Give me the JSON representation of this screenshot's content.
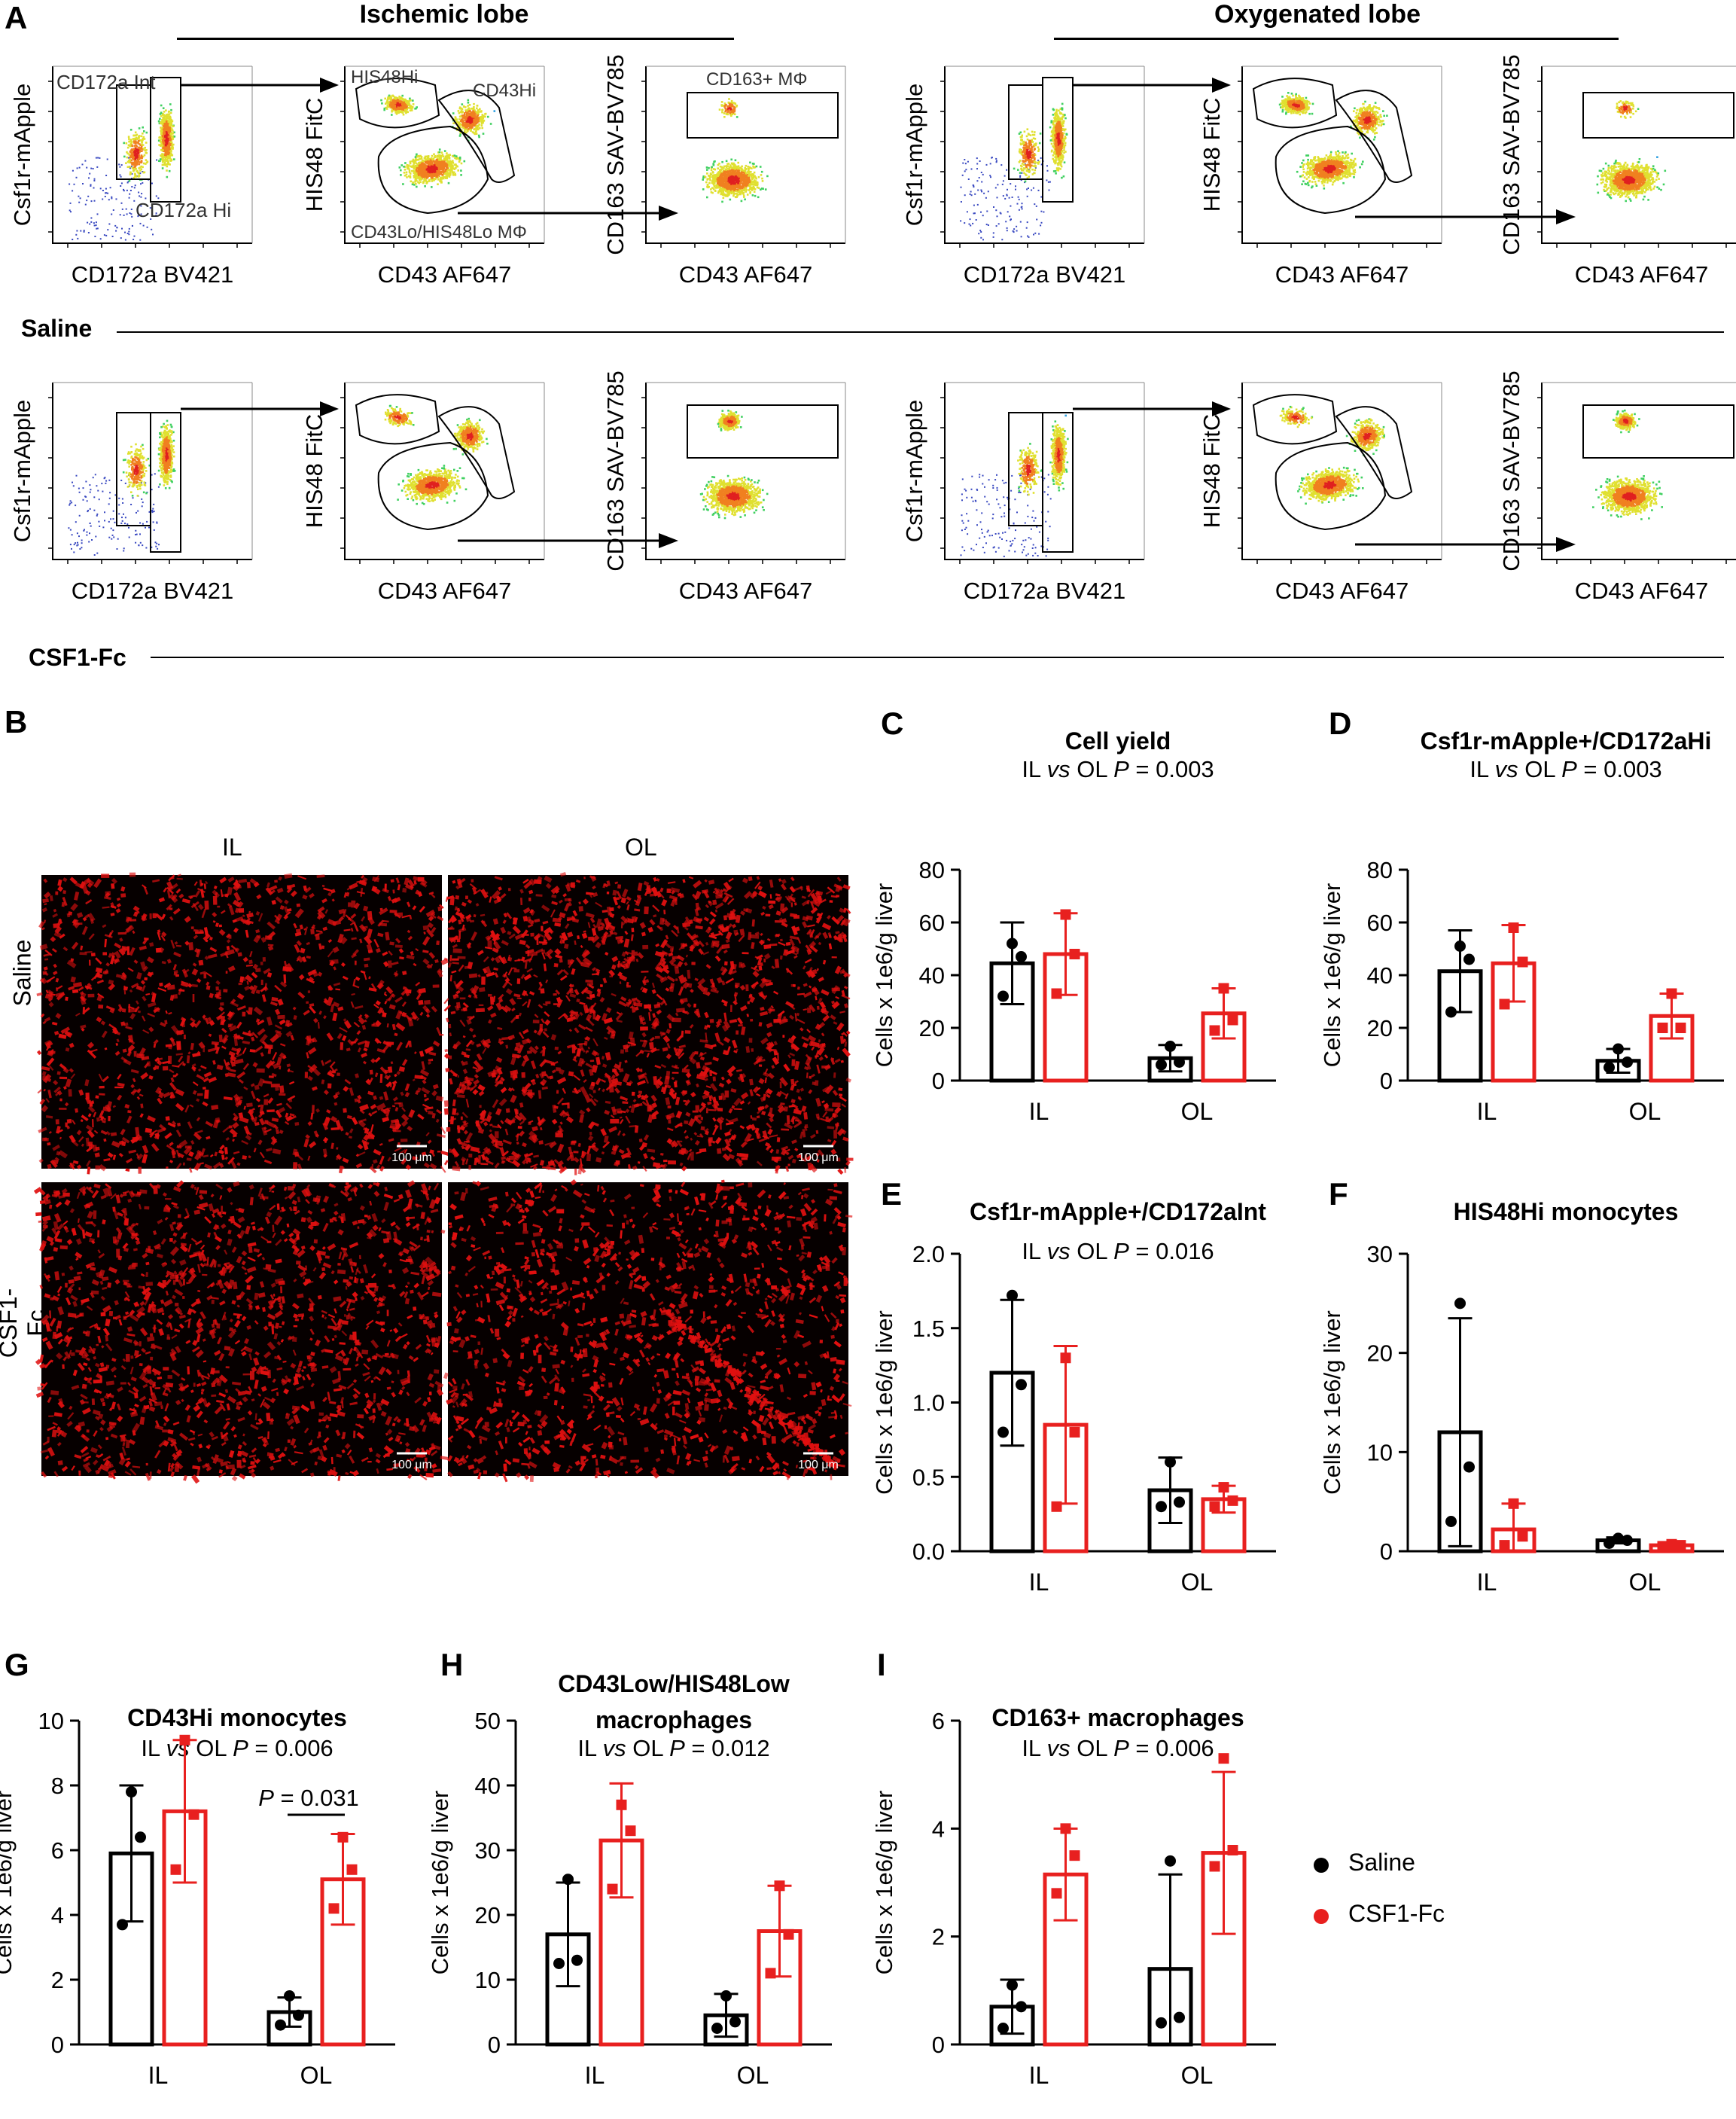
{
  "panel_a": {
    "label": "A",
    "group_headers": [
      "Ischemic lobe",
      "Oxygenated lobe"
    ],
    "condition_labels": [
      "Saline",
      "CSF1-Fc"
    ],
    "axis_labels": {
      "csf1r": "Csf1r-mApple",
      "cd172a": "CD172a BV421",
      "his48": "HIS48 FitC",
      "cd43": "CD43 AF647",
      "cd163": "CD163 SAV-BV785"
    },
    "gate_labels": {
      "cd172a_int": "CD172a Int",
      "cd172a_hi": "CD172a Hi",
      "his48hi": "HIS48Hi",
      "cd43hi": "CD43Hi",
      "cd43lo": "CD43Lo/HIS48Lo MΦ",
      "cd163": "CD163+ MΦ"
    }
  },
  "panel_b": {
    "label": "B",
    "columns": [
      "IL",
      "OL"
    ],
    "rows": [
      "Saline",
      "CSF1-Fc"
    ],
    "scale_bar": "100 μm"
  },
  "legend": {
    "series": [
      "Saline",
      "CSF1-Fc"
    ],
    "colors": [
      "#000000",
      "#e8201f"
    ]
  },
  "colors": {
    "saline": "#000000",
    "csf1fc": "#e8201f",
    "tissue": "#e01010"
  },
  "chart_data": [
    {
      "label": "C",
      "type": "bar",
      "title": "Cell yield",
      "subtitle_pre": "IL ",
      "subtitle_vs": "vs",
      "subtitle_mid": " OL ",
      "subtitle_p": "P",
      "subtitle_val": " = 0.003",
      "ylabel": "Cells x 1e6/g liver",
      "ylim": [
        0,
        80
      ],
      "yticks": [
        0,
        20,
        40,
        60,
        80
      ],
      "categories": [
        "IL",
        "OL"
      ],
      "series": [
        {
          "name": "Saline",
          "values": [
            44.5,
            8.5
          ],
          "sd": [
            15.5,
            5.0
          ],
          "points": [
            [
              52,
              47,
              32
            ],
            [
              13,
              7,
              6
            ]
          ]
        },
        {
          "name": "CSF1-Fc",
          "values": [
            48,
            25.5
          ],
          "sd": [
            15.5,
            9.5
          ],
          "points": [
            [
              63,
              48,
              33
            ],
            [
              35,
              23,
              19
            ]
          ]
        }
      ]
    },
    {
      "label": "D",
      "type": "bar",
      "title": "Csf1r-mApple+/CD172aHi",
      "subtitle_pre": "IL ",
      "subtitle_vs": "vs",
      "subtitle_mid": " OL ",
      "subtitle_p": "P",
      "subtitle_val": " = 0.003",
      "ylabel": "Cells x 1e6/g liver",
      "ylim": [
        0,
        80
      ],
      "yticks": [
        0,
        20,
        40,
        60,
        80
      ],
      "categories": [
        "IL",
        "OL"
      ],
      "series": [
        {
          "name": "Saline",
          "values": [
            41.5,
            7.5
          ],
          "sd": [
            15.5,
            4.5
          ],
          "points": [
            [
              51,
              46,
              26
            ],
            [
              12,
              7,
              5
            ]
          ]
        },
        {
          "name": "CSF1-Fc",
          "values": [
            44.5,
            24.5
          ],
          "sd": [
            14.5,
            8.5
          ],
          "points": [
            [
              58,
              45,
              29
            ],
            [
              33,
              20,
              20
            ]
          ]
        }
      ]
    },
    {
      "label": "E",
      "type": "bar",
      "title": "Csf1r-mApple+/CD172aInt",
      "subtitle_pre": "IL ",
      "subtitle_vs": "vs",
      "subtitle_mid": " OL ",
      "subtitle_p": "P",
      "subtitle_val": " = 0.016",
      "ylabel": "Cells x 1e6/g liver",
      "ylim": [
        0,
        2.0
      ],
      "yticks": [
        "0.0",
        "0.5",
        "1.0",
        "1.5",
        "2.0"
      ],
      "categories": [
        "IL",
        "OL"
      ],
      "series": [
        {
          "name": "Saline",
          "values": [
            1.2,
            0.41
          ],
          "sd": [
            0.49,
            0.22
          ],
          "points": [
            [
              1.72,
              1.12,
              0.8
            ],
            [
              0.6,
              0.33,
              0.3
            ]
          ]
        },
        {
          "name": "CSF1-Fc",
          "values": [
            0.85,
            0.35
          ],
          "sd": [
            0.53,
            0.09
          ],
          "points": [
            [
              1.3,
              0.8,
              0.3
            ],
            [
              0.43,
              0.34,
              0.3
            ]
          ]
        }
      ]
    },
    {
      "label": "F",
      "type": "bar",
      "title": "HIS48Hi monocytes",
      "subtitle_pre": "",
      "subtitle_vs": "",
      "subtitle_mid": "",
      "subtitle_p": "",
      "subtitle_val": "",
      "ylabel": "Cells x 1e6/g liver",
      "ylim": [
        0,
        30
      ],
      "yticks": [
        0,
        10,
        20,
        30
      ],
      "categories": [
        "IL",
        "OL"
      ],
      "series": [
        {
          "name": "Saline",
          "values": [
            12,
            1.1
          ],
          "sd": [
            11.5,
            0.3
          ],
          "points": [
            [
              25,
              8.5,
              3
            ],
            [
              1.3,
              1.1,
              0.8
            ]
          ]
        },
        {
          "name": "CSF1-Fc",
          "values": [
            2.2,
            0.6
          ],
          "sd": [
            2.6,
            0.1
          ],
          "points": [
            [
              4.8,
              1.5,
              0.6
            ],
            [
              0.7,
              0.6,
              0.5
            ]
          ]
        }
      ]
    },
    {
      "label": "G",
      "type": "bar",
      "title": "CD43Hi monocytes",
      "subtitle_pre": "IL ",
      "subtitle_vs": "vs",
      "subtitle_mid": " OL ",
      "subtitle_p": "P",
      "subtitle_val": " = 0.006",
      "ylabel": "Cells x 1e6/g liver",
      "ylim": [
        0,
        10
      ],
      "yticks": [
        0,
        2,
        4,
        6,
        8,
        10
      ],
      "categories": [
        "IL",
        "OL"
      ],
      "bracket": {
        "p": "P",
        "text": " = 0.031"
      },
      "series": [
        {
          "name": "Saline",
          "values": [
            5.9,
            1.0
          ],
          "sd": [
            2.1,
            0.45
          ],
          "points": [
            [
              7.8,
              6.4,
              3.7
            ],
            [
              1.5,
              0.9,
              0.6
            ]
          ]
        },
        {
          "name": "CSF1-Fc",
          "values": [
            7.2,
            5.1
          ],
          "sd": [
            2.2,
            1.4
          ],
          "points": [
            [
              9.4,
              7.1,
              5.4
            ],
            [
              6.4,
              5.4,
              4.2
            ]
          ]
        }
      ]
    },
    {
      "label": "H",
      "type": "bar",
      "title": "CD43Low/HIS48Low",
      "title2": "macrophages",
      "subtitle_pre": "IL ",
      "subtitle_vs": "vs",
      "subtitle_mid": " OL ",
      "subtitle_p": "P",
      "subtitle_val": " = 0.012",
      "ylabel": "Cells x 1e6/g liver",
      "ylim": [
        0,
        50
      ],
      "yticks": [
        0,
        10,
        20,
        30,
        40,
        50
      ],
      "categories": [
        "IL",
        "OL"
      ],
      "series": [
        {
          "name": "Saline",
          "values": [
            17,
            4.5
          ],
          "sd": [
            8,
            3.3
          ],
          "points": [
            [
              25.5,
              13,
              12.5
            ],
            [
              7.5,
              3.5,
              2.5
            ]
          ]
        },
        {
          "name": "CSF1-Fc",
          "values": [
            31.5,
            17.5
          ],
          "sd": [
            8.8,
            7
          ],
          "points": [
            [
              37,
              33,
              24
            ],
            [
              24.5,
              17,
              11
            ]
          ]
        }
      ]
    },
    {
      "label": "I",
      "type": "bar",
      "title": "CD163+ macrophages",
      "subtitle_pre": "IL ",
      "subtitle_vs": "vs",
      "subtitle_mid": " OL ",
      "subtitle_p": "P",
      "subtitle_val": " = 0.006",
      "ylabel": "Cells x 1e6/g liver",
      "ylim": [
        0,
        6
      ],
      "yticks": [
        0,
        2,
        4,
        6
      ],
      "categories": [
        "IL",
        "OL"
      ],
      "series": [
        {
          "name": "Saline",
          "values": [
            0.7,
            1.4
          ],
          "sd": [
            0.5,
            1.75
          ],
          "points": [
            [
              1.1,
              0.7,
              0.3
            ],
            [
              3.4,
              0.5,
              0.4
            ]
          ]
        },
        {
          "name": "CSF1-Fc",
          "values": [
            3.15,
            3.55
          ],
          "sd": [
            0.85,
            1.5
          ],
          "points": [
            [
              4.0,
              3.5,
              2.8
            ],
            [
              5.3,
              3.6,
              3.3
            ]
          ]
        }
      ]
    }
  ]
}
